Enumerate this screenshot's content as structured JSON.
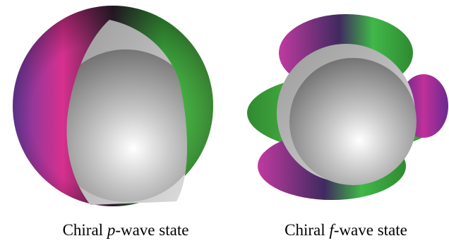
{
  "panels": [
    {
      "caption": [
        "Chiral ",
        "p",
        "-wave state"
      ]
    },
    {
      "caption": [
        "Chiral ",
        "f",
        "-wave state"
      ]
    }
  ]
}
